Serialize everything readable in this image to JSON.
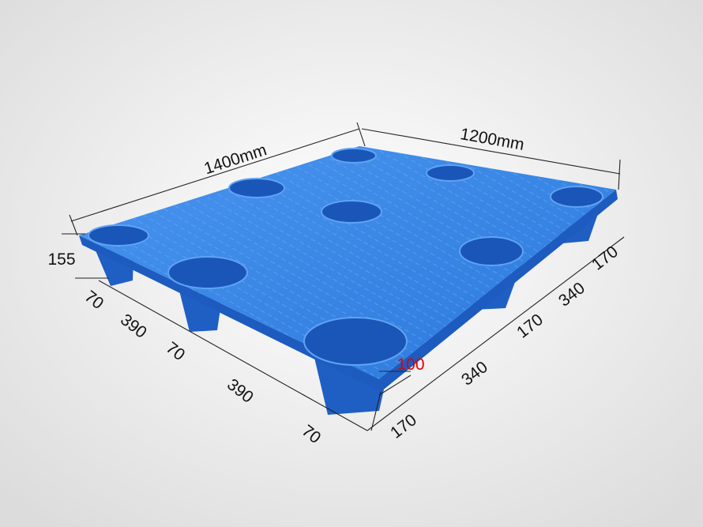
{
  "image": {
    "subject": "plastic pallet",
    "colors": {
      "pallet": "#2f7fe0",
      "pallet_dark": "#1a55b8",
      "background": "#e9e9e9",
      "highlight_dimension": "#e00000"
    }
  },
  "dimensions": {
    "length": "1400mm",
    "width": "1200mm",
    "height": "155",
    "leg_height": "100",
    "length_segments": [
      "70",
      "390",
      "70",
      "390",
      "70"
    ],
    "width_segments": [
      "170",
      "340",
      "170",
      "340",
      "170"
    ]
  }
}
